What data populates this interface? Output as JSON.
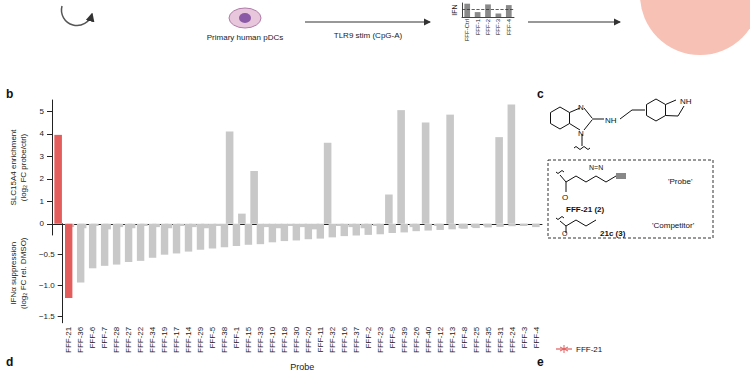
{
  "chart_data": [
    {
      "type": "bar",
      "xlabel": "Probe",
      "ylabel": "SLC15A4 enrichment\n(log₂ FC probe/ctrl)",
      "y2label": "IFNα suppression\n(log₂ FC rel. DMSO)",
      "categories": [
        "FFF-21",
        "FFF-36",
        "FFF-6",
        "FFF-7",
        "FFF-28",
        "FFF-27",
        "FFF-22",
        "FFF-34",
        "FFF-19",
        "FFF-17",
        "FFF-14",
        "FFF-29",
        "FFF-5",
        "FFF-38",
        "FFF-1",
        "FFF-15",
        "FFF-33",
        "FFF-10",
        "FFF-18",
        "FFF-30",
        "FFF-20",
        "FFF-11",
        "FFF-32",
        "FFF-16",
        "FFF-37",
        "FFF-2",
        "FFF-23",
        "FFF-9",
        "FFF-39",
        "FFF-26",
        "FFF-40",
        "FFF-12",
        "FFF-13",
        "FFF-8",
        "FFF-25",
        "FFF-35",
        "FFF-31",
        "FFF-24",
        "FFF-3",
        "FFF-4"
      ],
      "ylim": [
        -0.5,
        5.5
      ],
      "yticks": [
        0,
        1,
        2,
        3,
        4,
        5
      ],
      "y2lim": [
        -1.6,
        0
      ],
      "y2ticks": [
        {
          "value": -1.5,
          "label": "−1.5"
        },
        {
          "value": -1,
          "label": "−1.0"
        },
        {
          "value": -0.5,
          "label": "−0.5"
        }
      ],
      "grid": false,
      "series": [
        {
          "colors": [
            "#e35d5d",
            "#c8c8c8",
            "#c8c8c8",
            "#c8c8c8",
            "#c8c8c8",
            "#c8c8c8",
            "#c8c8c8",
            "#c8c8c8",
            "#c8c8c8",
            "#c8c8c8",
            "#c8c8c8",
            "#c8c8c8",
            "#c8c8c8",
            "#c8c8c8",
            "#c8c8c8",
            "#c8c8c8",
            "#c8c8c8",
            "#c8c8c8",
            "#c8c8c8",
            "#c8c8c8",
            "#c8c8c8",
            "#c8c8c8",
            "#c8c8c8",
            "#c8c8c8",
            "#c8c8c8",
            "#c8c8c8",
            "#c8c8c8",
            "#c8c8c8",
            "#c8c8c8",
            "#c8c8c8",
            "#c8c8c8",
            "#c8c8c8",
            "#c8c8c8",
            "#c8c8c8",
            "#c8c8c8",
            "#c8c8c8",
            "#c8c8c8",
            "#c8c8c8",
            "#c8c8c8",
            "#c8c8c8"
          ],
          "values": [
            3.95,
            -0.15,
            -0.2,
            -0.1,
            -0.25,
            -0.15,
            -0.2,
            -0.1,
            -0.15,
            -0.2,
            -0.1,
            -0.15,
            -0.2,
            -0.1,
            4.1,
            0.45,
            2.35,
            -0.15,
            -0.2,
            -0.1,
            -0.15,
            -0.25,
            3.6,
            -0.1,
            -0.15,
            -0.2,
            -0.1,
            1.3,
            5.05,
            -0.15,
            4.5,
            -0.1,
            4.85,
            -0.2,
            -0.15,
            -0.1,
            3.85,
            5.3,
            -0.1,
            -0.15
          ]
        },
        {
          "axis": "y2",
          "colors": [
            "#e35d5d",
            "#c8c8c8",
            "#c8c8c8",
            "#c8c8c8",
            "#c8c8c8",
            "#c8c8c8",
            "#c8c8c8",
            "#c8c8c8",
            "#c8c8c8",
            "#c8c8c8",
            "#c8c8c8",
            "#c8c8c8",
            "#c8c8c8",
            "#c8c8c8",
            "#c8c8c8",
            "#c8c8c8",
            "#c8c8c8",
            "#c8c8c8",
            "#c8c8c8",
            "#c8c8c8",
            "#c8c8c8",
            "#c8c8c8",
            "#c8c8c8",
            "#c8c8c8",
            "#c8c8c8",
            "#c8c8c8",
            "#c8c8c8",
            "#c8c8c8",
            "#c8c8c8",
            "#c8c8c8",
            "#c8c8c8",
            "#c8c8c8",
            "#c8c8c8",
            "#c8c8c8",
            "#c8c8c8",
            "#c8c8c8",
            "#c8c8c8",
            "#c8c8c8",
            "#c8c8c8",
            "#c8c8c8"
          ],
          "values": [
            -1.2,
            -0.95,
            -0.72,
            -0.68,
            -0.66,
            -0.62,
            -0.6,
            -0.55,
            -0.5,
            -0.48,
            -0.45,
            -0.42,
            -0.4,
            -0.38,
            -0.36,
            -0.34,
            -0.33,
            -0.3,
            -0.28,
            -0.27,
            -0.25,
            -0.24,
            -0.22,
            -0.2,
            -0.19,
            -0.18,
            -0.17,
            -0.15,
            -0.14,
            -0.12,
            -0.11,
            -0.1,
            -0.09,
            -0.08,
            -0.07,
            -0.06,
            -0.05,
            -0.04,
            -0.02,
            -0.01
          ]
        }
      ]
    },
    {
      "type": "bar",
      "ylabel": "IFN",
      "categories": [
        "FFF-Ctrl",
        "FFF-1",
        "FFF-2",
        "FFF-3",
        "FFF-4"
      ],
      "values": [
        0.95,
        0.35,
        0.9,
        0.25,
        0.85
      ],
      "color": "#8a8a8a",
      "ylim": [
        0,
        1
      ],
      "reference_line": 0.55,
      "tick_labels": "x"
    }
  ],
  "panel_labels": [
    "b",
    "c",
    "d",
    "e"
  ],
  "panel_a": {
    "cell_label": "Primary human pDCs",
    "stimulus": "TLR9 stim (CpG-A)"
  },
  "panel_c": {
    "ring_n": "N",
    "linker_nh": "NH",
    "indole_nh": "NH",
    "probe_diazirine": "N=N",
    "probe_oxygen": "O",
    "probe_name": "FFF-21 (2)",
    "probe_tag": "'Probe'",
    "competitor_oxygen": "O",
    "competitor_name": "21c (3)",
    "competitor_tag": "'Competitor'"
  },
  "panel_e": {
    "legend_item": "FFF-21"
  }
}
